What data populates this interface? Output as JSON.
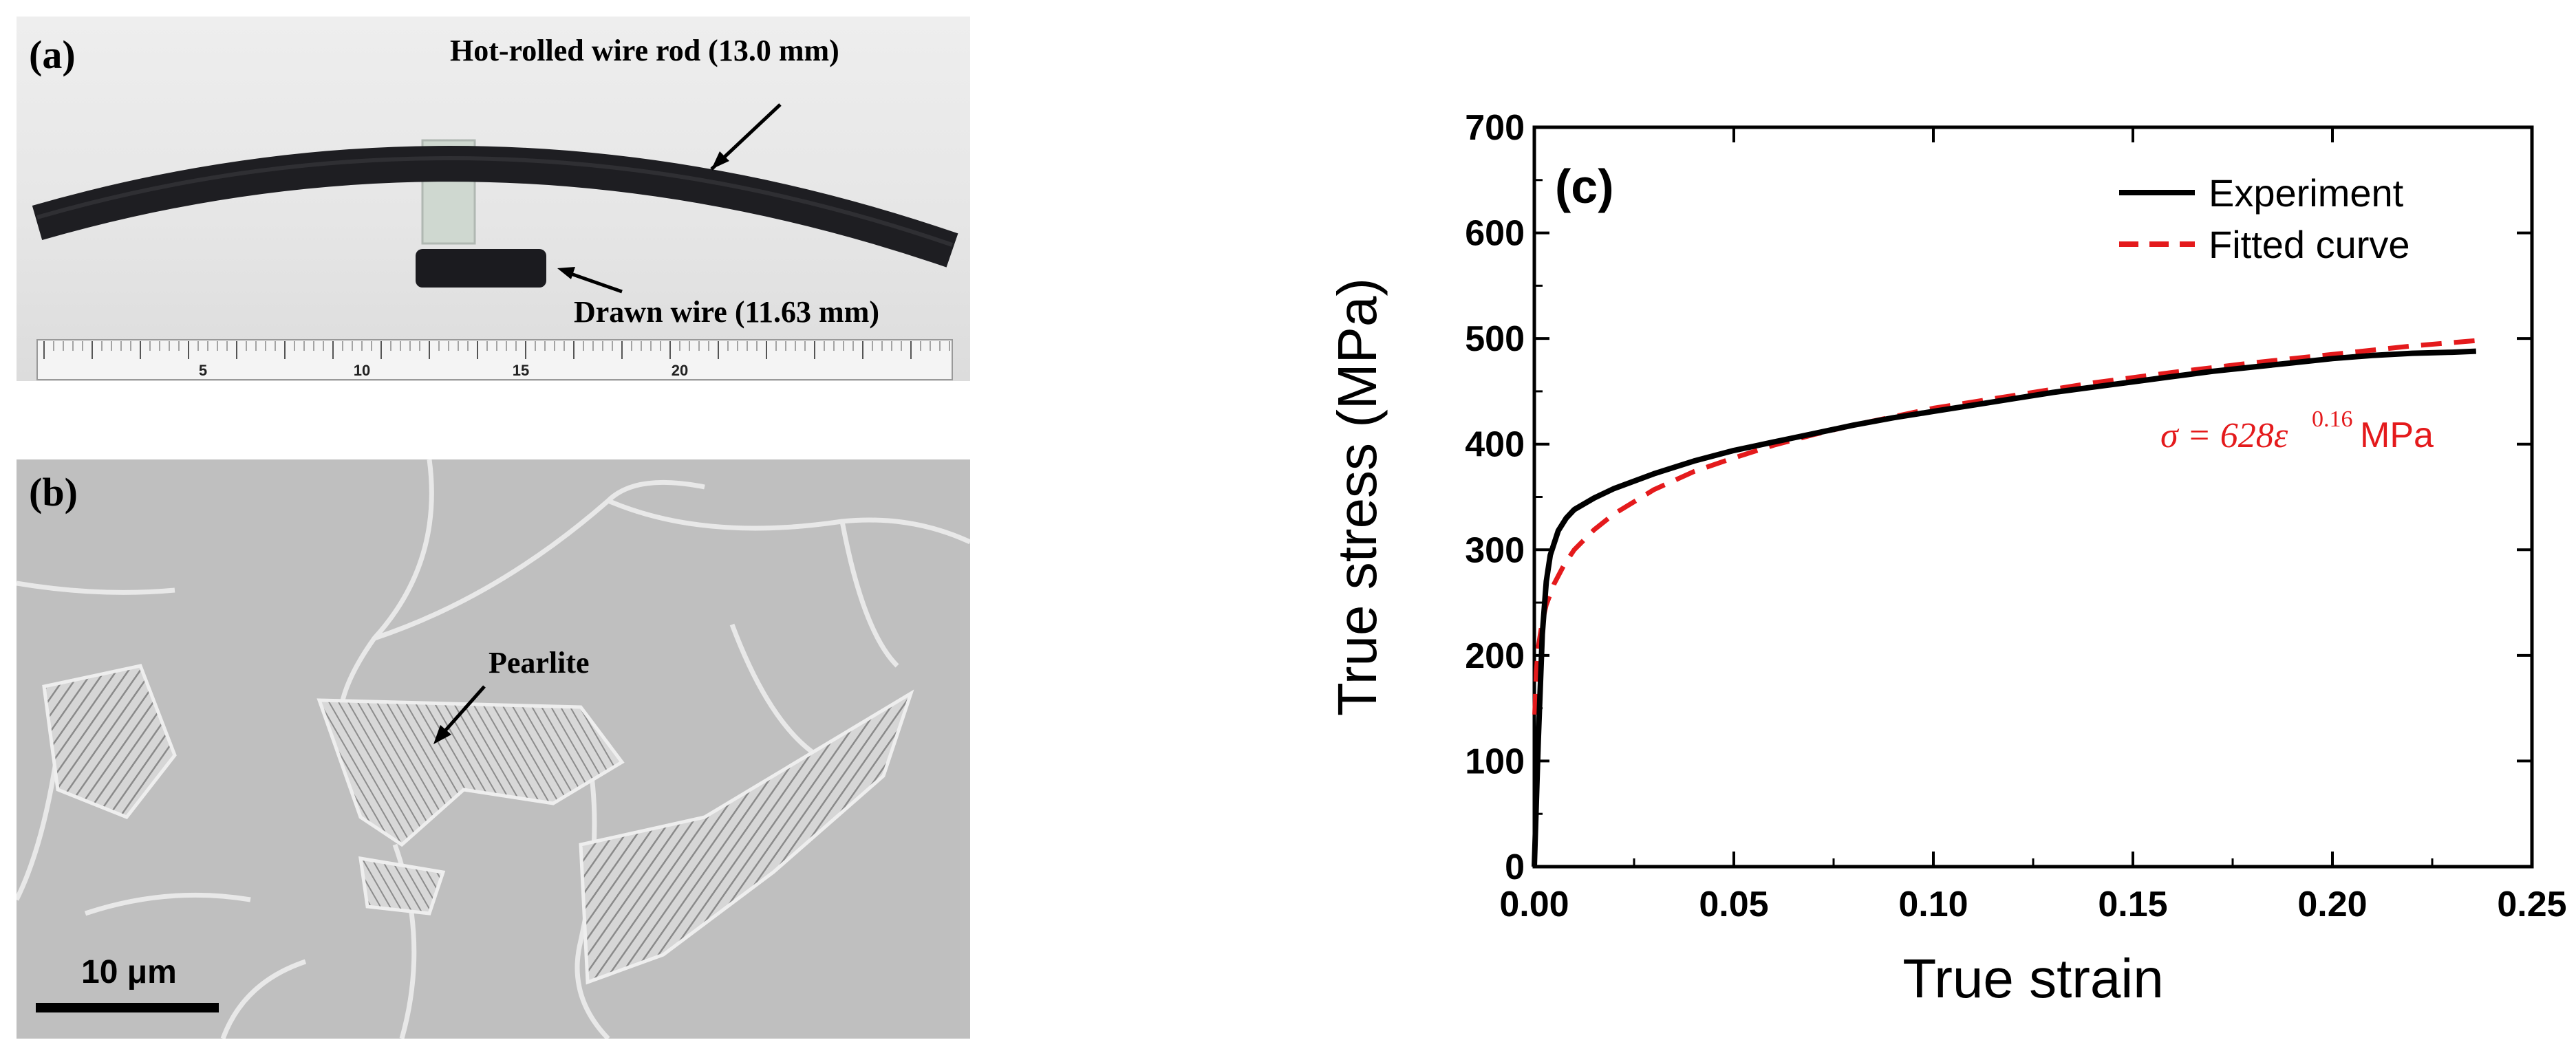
{
  "panel_a": {
    "letter": "(a)",
    "label_rod": "Hot-rolled wire rod (13.0 mm)",
    "label_drawn": "Drawn wire (11.63 mm)",
    "ruler_numbers": [
      "5",
      "10",
      "15",
      "20"
    ]
  },
  "panel_b": {
    "letter": "(b)",
    "label_pearlite": "Pearlite",
    "scalebar": "10 μm"
  },
  "panel_c": {
    "letter": "(c)",
    "equation": {
      "prefix": "σ = 628ε",
      "exponent": "0.16",
      "unit": "MPa"
    }
  },
  "colors": {
    "experiment": "#000000",
    "fitted": "#e41a1c"
  },
  "chart_data": {
    "type": "line",
    "xlabel": "True strain",
    "ylabel": "True stress (MPa)",
    "xlim": [
      0.0,
      0.25
    ],
    "ylim": [
      0,
      700
    ],
    "x_ticks": [
      "0.00",
      "0.05",
      "0.10",
      "0.15",
      "0.20",
      "0.25"
    ],
    "y_ticks": [
      "0",
      "100",
      "200",
      "300",
      "400",
      "500",
      "600",
      "700"
    ],
    "legend_position": "top-right",
    "series": [
      {
        "name": "Experiment",
        "style": "solid",
        "x": [
          0,
          0.001,
          0.002,
          0.003,
          0.004,
          0.006,
          0.008,
          0.01,
          0.015,
          0.02,
          0.03,
          0.04,
          0.05,
          0.06,
          0.07,
          0.08,
          0.09,
          0.1,
          0.11,
          0.12,
          0.13,
          0.14,
          0.15,
          0.16,
          0.17,
          0.18,
          0.19,
          0.2,
          0.21,
          0.22,
          0.23,
          0.236
        ],
        "y": [
          0,
          120,
          220,
          270,
          295,
          318,
          330,
          338,
          349,
          358,
          372,
          384,
          394,
          402,
          410,
          418,
          425,
          431,
          437,
          443,
          449,
          454,
          459,
          464,
          469,
          473,
          477,
          481,
          484,
          486,
          487,
          488
        ]
      },
      {
        "name": "Fitted curve",
        "style": "dashed",
        "x": [
          0.0001,
          0.0005,
          0.001,
          0.002,
          0.003,
          0.005,
          0.0075,
          0.01,
          0.015,
          0.02,
          0.03,
          0.04,
          0.05,
          0.06,
          0.07,
          0.08,
          0.09,
          0.1,
          0.12,
          0.14,
          0.16,
          0.18,
          0.2,
          0.22,
          0.236
        ],
        "y": [
          144,
          185,
          208,
          232,
          248,
          268,
          286,
          300,
          319,
          334,
          357,
          374,
          387,
          399,
          409,
          418,
          426,
          434,
          446,
          458,
          468,
          477,
          485,
          493,
          498
        ]
      }
    ]
  }
}
